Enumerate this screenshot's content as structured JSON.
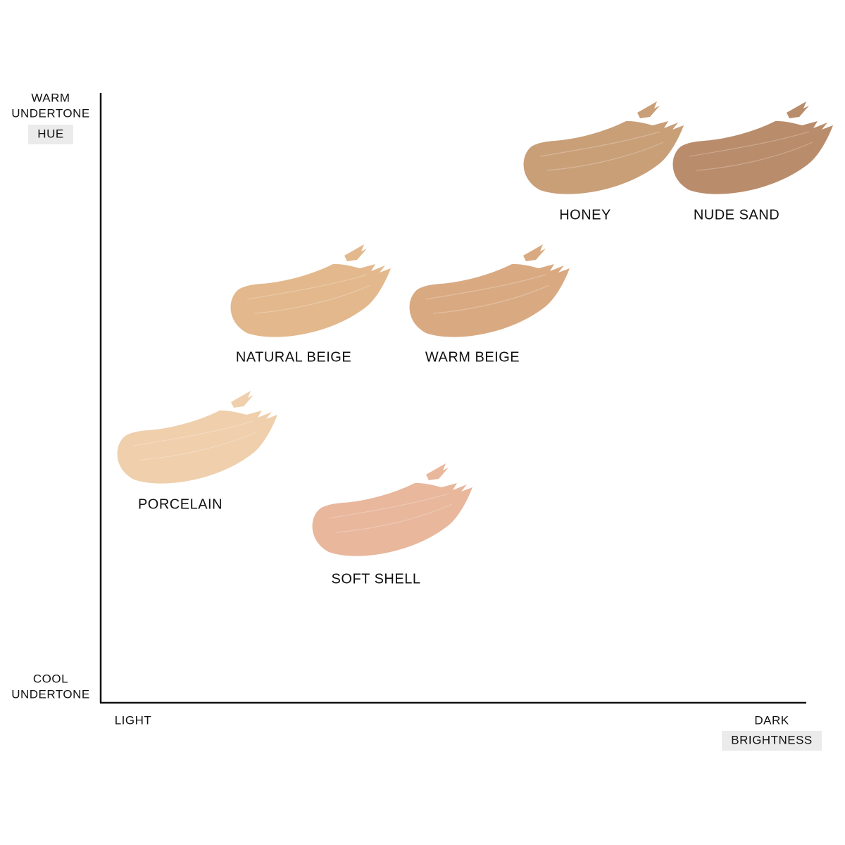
{
  "y_axis": {
    "top": [
      "WARM",
      "UNDERTONE"
    ],
    "title": "HUE",
    "bottom": [
      "COOL",
      "UNDERTONE"
    ]
  },
  "x_axis": {
    "left": "LIGHT",
    "right": "DARK",
    "title": "BRIGHTNESS"
  },
  "swatches": [
    {
      "label": "HONEY"
    },
    {
      "label": "NUDE SAND"
    },
    {
      "label": "NATURAL BEIGE"
    },
    {
      "label": "WARM BEIGE"
    },
    {
      "label": "PORCELAIN"
    },
    {
      "label": "SOFT SHELL"
    }
  ]
}
